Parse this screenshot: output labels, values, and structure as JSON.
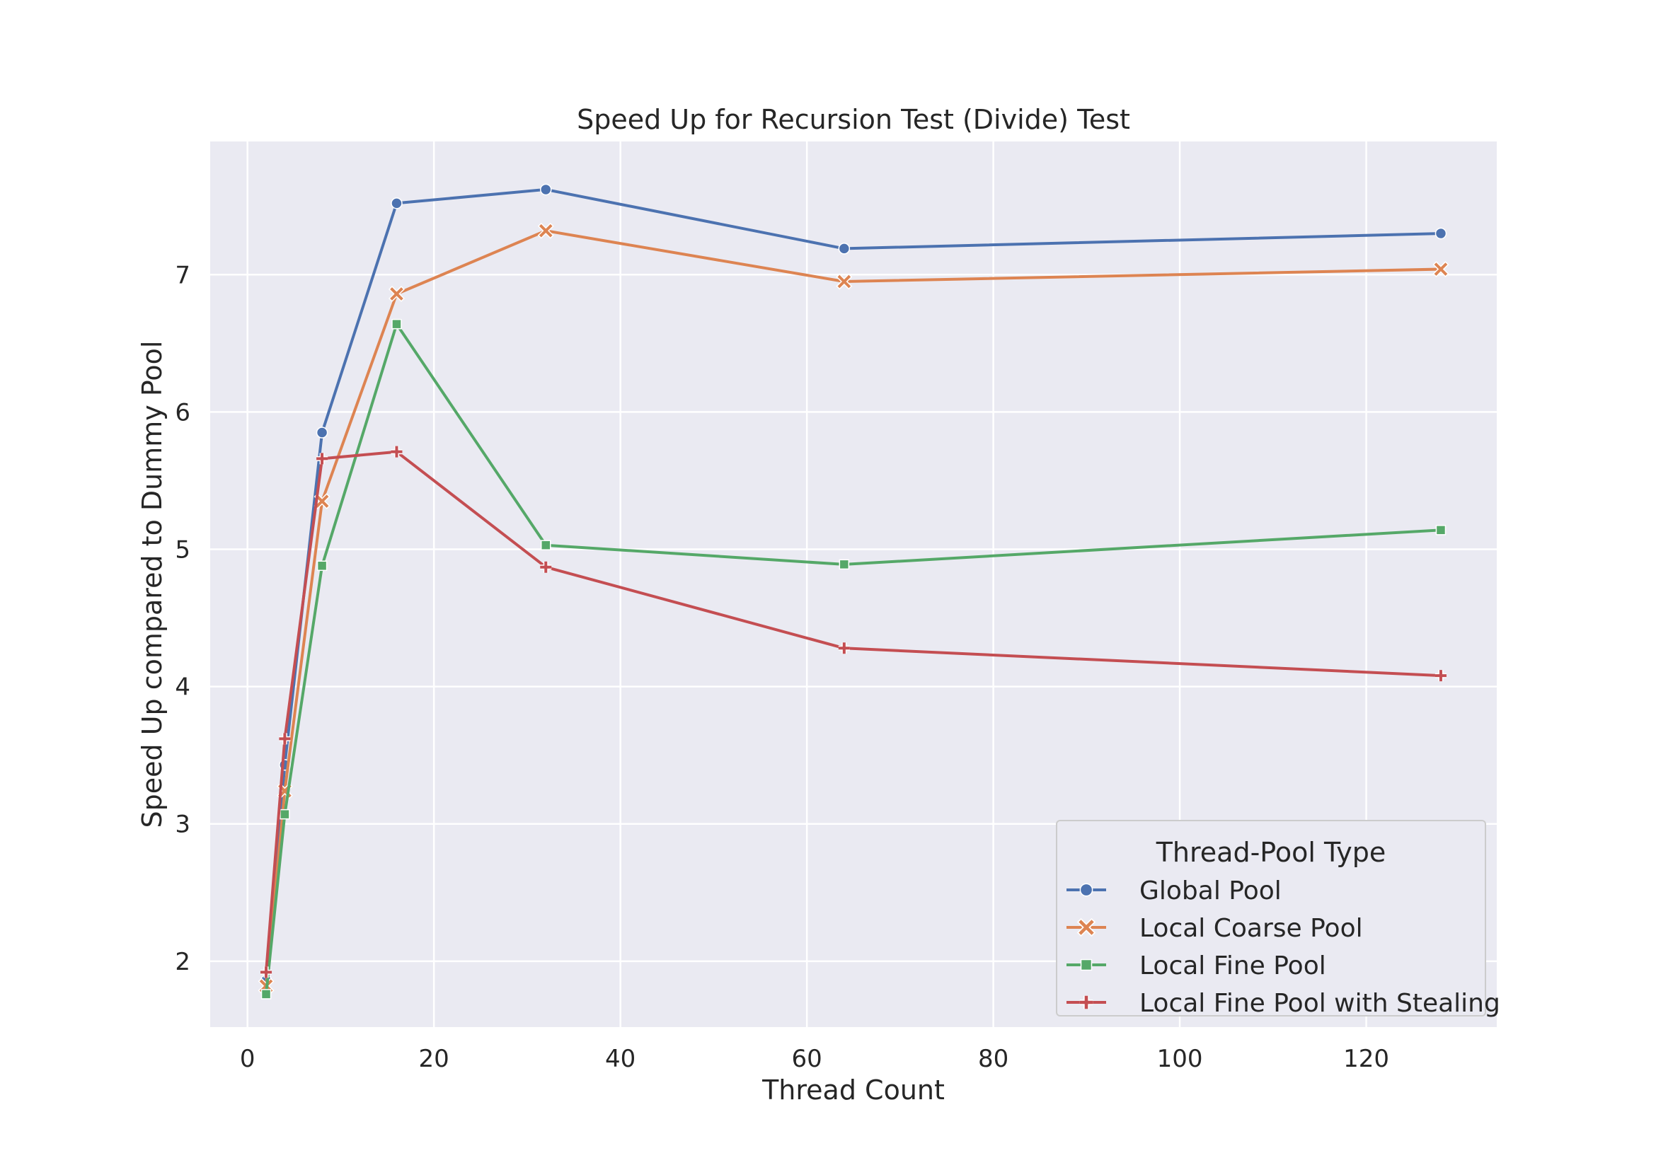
{
  "chart_data": {
    "type": "line",
    "title": "Speed Up for Recursion Test (Divide) Test",
    "xlabel": "Thread Count",
    "ylabel": "Speed Up compared to Dummy Pool",
    "x": [
      2,
      4,
      8,
      16,
      32,
      64,
      128
    ],
    "xlim": [
      -4,
      134
    ],
    "ylim": [
      1.52,
      7.97
    ],
    "xticks": [
      0,
      20,
      40,
      60,
      80,
      100,
      120
    ],
    "yticks": [
      2,
      3,
      4,
      5,
      6,
      7
    ],
    "grid": true,
    "legend": {
      "title": "Thread-Pool Type",
      "placement": "lower-right"
    },
    "series": [
      {
        "name": "Global Pool",
        "color": "#4c72b0",
        "marker": "circle",
        "values": [
          1.86,
          3.43,
          5.85,
          7.52,
          7.62,
          7.19,
          7.3
        ]
      },
      {
        "name": "Local Coarse Pool",
        "color": "#dd8452",
        "marker": "x",
        "values": [
          1.82,
          3.24,
          5.35,
          6.86,
          7.32,
          6.95,
          7.04
        ]
      },
      {
        "name": "Local Fine Pool",
        "color": "#55a868",
        "marker": "square",
        "values": [
          1.76,
          3.07,
          4.88,
          6.64,
          5.03,
          4.89,
          5.14
        ]
      },
      {
        "name": "Local Fine Pool with Stealing",
        "color": "#c44e52",
        "marker": "plus",
        "values": [
          1.92,
          3.62,
          5.66,
          5.71,
          4.87,
          4.28,
          4.08
        ]
      }
    ]
  }
}
